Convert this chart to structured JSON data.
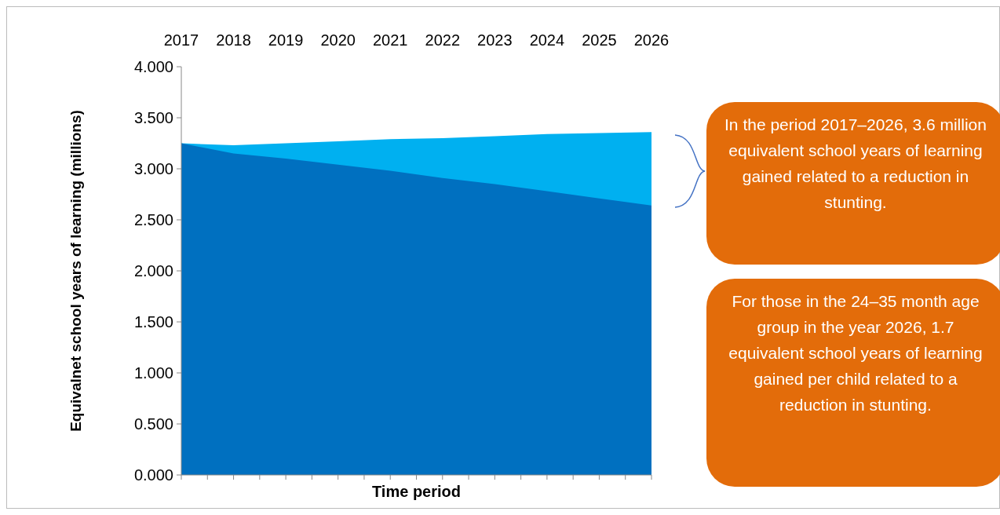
{
  "chart_data": {
    "type": "area",
    "xlabel": "Time period",
    "ylabel": "Equivalnet school years of learning (millions)",
    "categories": [
      "2017",
      "2018",
      "2019",
      "2020",
      "2021",
      "2022",
      "2023",
      "2024",
      "2025",
      "2026"
    ],
    "series": [
      {
        "color": "#00b0f0",
        "values": [
          3.25,
          3.23,
          3.25,
          3.27,
          3.29,
          3.3,
          3.32,
          3.34,
          3.35,
          3.36
        ]
      },
      {
        "color": "#0070c0",
        "values": [
          3.25,
          3.15,
          3.1,
          3.04,
          2.98,
          2.91,
          2.85,
          2.78,
          2.71,
          2.64
        ]
      }
    ],
    "ylim": [
      0,
      4
    ],
    "yticks": [
      {
        "value": 0,
        "label": "0.000"
      },
      {
        "value": 0.5,
        "label": "0.500"
      },
      {
        "value": 1,
        "label": "1.000"
      },
      {
        "value": 1.5,
        "label": "1.500"
      },
      {
        "value": 2,
        "label": "2.000"
      },
      {
        "value": 2.5,
        "label": "2.500"
      },
      {
        "value": 3,
        "label": "3.000"
      },
      {
        "value": 3.5,
        "label": "3.500"
      },
      {
        "value": 4,
        "label": "4.000"
      }
    ],
    "annotations": [
      "In the period 2017–2026, 3.6 million equivalent school years of learning gained related to a reduction in stunting.",
      "For those in the 24–35 month age group in the year 2026, 1.7 equivalent school years of learning gained per child related to a reduction in stunting."
    ]
  }
}
